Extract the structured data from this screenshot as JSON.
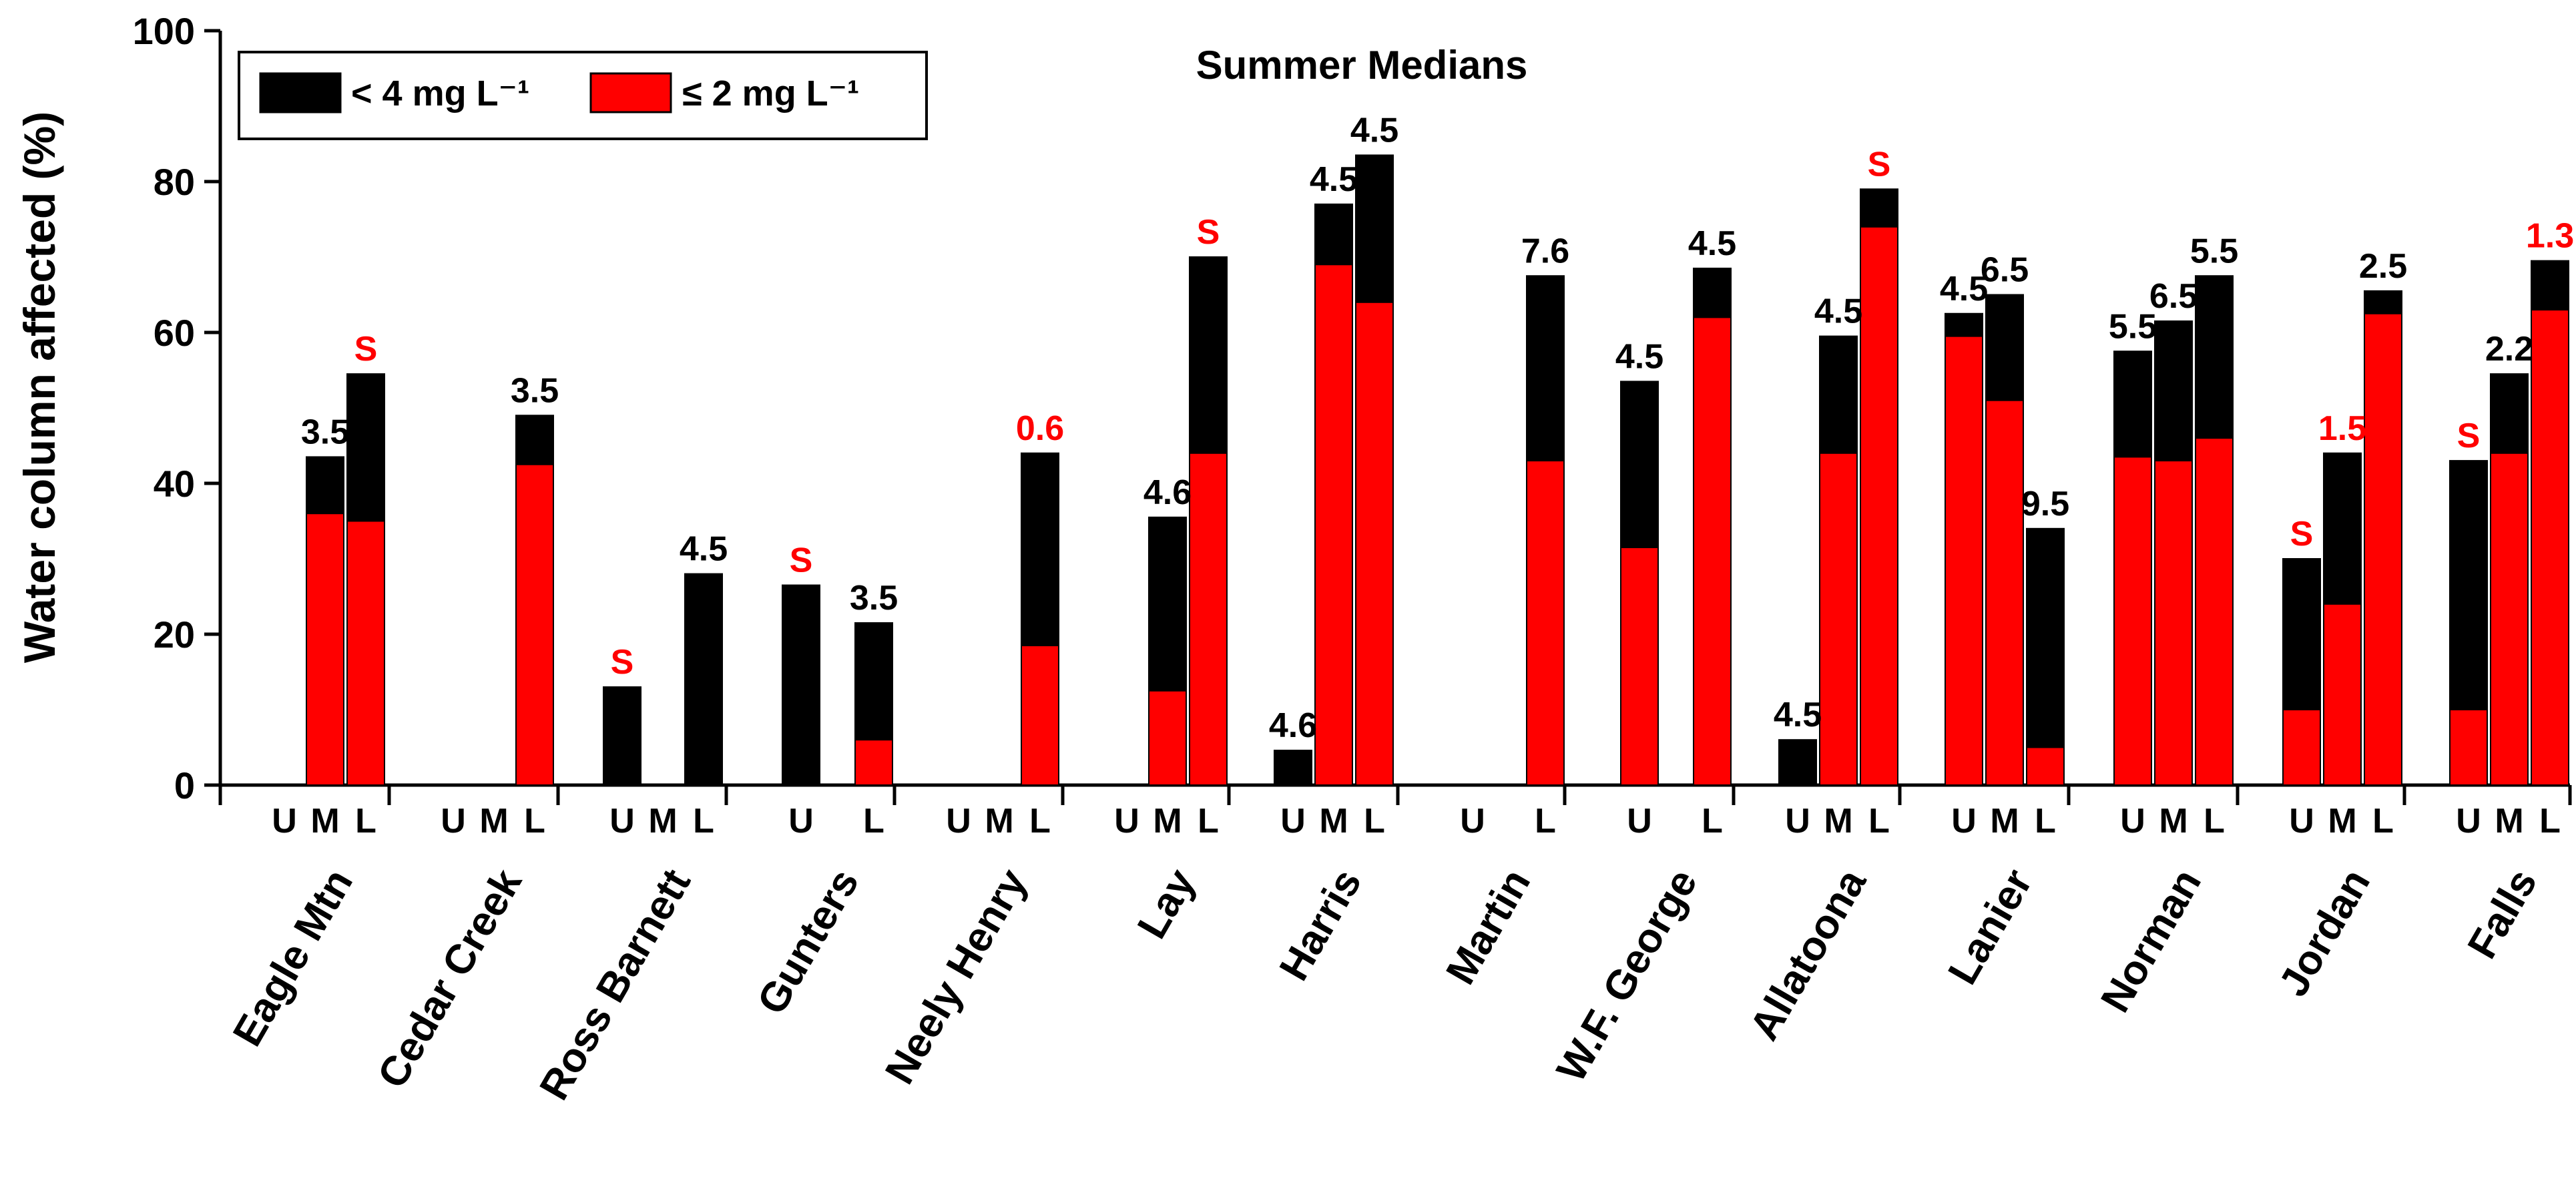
{
  "chart_data": {
    "type": "bar",
    "stacked": true,
    "title": "Summer Medians",
    "xlabel": "",
    "ylabel": "Water column affected (%)",
    "ylim": [
      0,
      100
    ],
    "yticks": [
      "0",
      "20",
      "40",
      "60",
      "80",
      "100"
    ],
    "legend_position": "top-left",
    "legend": [
      {
        "key": "lt4",
        "label": "< 4 mg L⁻¹",
        "color": "#000000"
      },
      {
        "key": "le2",
        "label": "≤ 2 mg L⁻¹",
        "color": "#ff0000"
      }
    ],
    "colors": {
      "lt4": "#000000",
      "le2": "#ff0000",
      "label_red": "#ff0000",
      "label_black": "#000000"
    },
    "groups": [
      {
        "name": "Eagle Mtn",
        "positions": [
          "U",
          "M",
          "L"
        ],
        "bars": [
          {
            "pos": "U",
            "lt4": 0,
            "le2": 0,
            "label": null
          },
          {
            "pos": "M",
            "lt4": 43.5,
            "le2": 36,
            "label": "3.5",
            "label_color": "black"
          },
          {
            "pos": "L",
            "lt4": 54.5,
            "le2": 35,
            "label": "S",
            "label_color": "red"
          }
        ]
      },
      {
        "name": "Cedar Creek",
        "positions": [
          "U",
          "M",
          "L"
        ],
        "bars": [
          {
            "pos": "U",
            "lt4": 0,
            "le2": 0,
            "label": null
          },
          {
            "pos": "M",
            "lt4": 0,
            "le2": 0,
            "label": null
          },
          {
            "pos": "L",
            "lt4": 49,
            "le2": 42.5,
            "label": "3.5",
            "label_color": "black"
          }
        ]
      },
      {
        "name": "Ross Barnett",
        "positions": [
          "U",
          "M",
          "L"
        ],
        "bars": [
          {
            "pos": "U",
            "lt4": 13,
            "le2": 0,
            "label": "S",
            "label_color": "red"
          },
          {
            "pos": "M",
            "lt4": 0,
            "le2": 0,
            "label": null
          },
          {
            "pos": "L",
            "lt4": 28,
            "le2": 0,
            "label": "4.5",
            "label_color": "black"
          }
        ]
      },
      {
        "name": "Gunters",
        "positions": [
          "U",
          "L"
        ],
        "bars": [
          {
            "pos": "U",
            "lt4": 26.5,
            "le2": 0,
            "label": "S",
            "label_color": "red"
          },
          {
            "pos": "L",
            "lt4": 21.5,
            "le2": 6,
            "label": "3.5",
            "label_color": "black"
          }
        ]
      },
      {
        "name": "Neely Henry",
        "positions": [
          "U",
          "M",
          "L"
        ],
        "bars": [
          {
            "pos": "U",
            "lt4": 0,
            "le2": 0,
            "label": null
          },
          {
            "pos": "M",
            "lt4": 0,
            "le2": 0,
            "label": null
          },
          {
            "pos": "L",
            "lt4": 44,
            "le2": 18.5,
            "label": "0.6",
            "label_color": "red"
          }
        ]
      },
      {
        "name": "Lay",
        "positions": [
          "U",
          "M",
          "L"
        ],
        "bars": [
          {
            "pos": "U",
            "lt4": 0,
            "le2": 0,
            "label": null
          },
          {
            "pos": "M",
            "lt4": 35.5,
            "le2": 12.5,
            "label": "4.6",
            "label_color": "black"
          },
          {
            "pos": "L",
            "lt4": 70,
            "le2": 44,
            "label": "S",
            "label_color": "red"
          }
        ]
      },
      {
        "name": "Harris",
        "positions": [
          "U",
          "M",
          "L"
        ],
        "bars": [
          {
            "pos": "U",
            "lt4": 4.6,
            "le2": 0,
            "label": "4.6",
            "label_color": "black"
          },
          {
            "pos": "M",
            "lt4": 77,
            "le2": 69,
            "label": "4.5",
            "label_color": "black"
          },
          {
            "pos": "L",
            "lt4": 83.5,
            "le2": 64,
            "label": "4.5",
            "label_color": "black"
          }
        ]
      },
      {
        "name": "Martin",
        "positions": [
          "U",
          "L"
        ],
        "bars": [
          {
            "pos": "U",
            "lt4": 0,
            "le2": 0,
            "label": null
          },
          {
            "pos": "L",
            "lt4": 67.5,
            "le2": 43,
            "label": "7.6",
            "label_color": "black"
          }
        ]
      },
      {
        "name": "W.F. George",
        "positions": [
          "U",
          "L"
        ],
        "bars": [
          {
            "pos": "U",
            "lt4": 53.5,
            "le2": 31.5,
            "label": "4.5",
            "label_color": "black"
          },
          {
            "pos": "L",
            "lt4": 68.5,
            "le2": 62,
            "label": "4.5",
            "label_color": "black"
          }
        ]
      },
      {
        "name": "Allatoona",
        "positions": [
          "U",
          "M",
          "L"
        ],
        "bars": [
          {
            "pos": "U",
            "lt4": 6,
            "le2": 0,
            "label": "4.5",
            "label_color": "black"
          },
          {
            "pos": "M",
            "lt4": 59.5,
            "le2": 44,
            "label": "4.5",
            "label_color": "black"
          },
          {
            "pos": "L",
            "lt4": 79,
            "le2": 74,
            "label": "S",
            "label_color": "red"
          }
        ]
      },
      {
        "name": "Lanier",
        "positions": [
          "U",
          "M",
          "L"
        ],
        "bars": [
          {
            "pos": "U",
            "lt4": 62.5,
            "le2": 59.5,
            "label": "4.5",
            "label_color": "black"
          },
          {
            "pos": "M",
            "lt4": 65,
            "le2": 51,
            "label": "6.5",
            "label_color": "black"
          },
          {
            "pos": "L",
            "lt4": 34,
            "le2": 5,
            "label": "9.5",
            "label_color": "black"
          }
        ]
      },
      {
        "name": "Norman",
        "positions": [
          "U",
          "M",
          "L"
        ],
        "bars": [
          {
            "pos": "U",
            "lt4": 57.5,
            "le2": 43.5,
            "label": "5.5",
            "label_color": "black"
          },
          {
            "pos": "M",
            "lt4": 61.5,
            "le2": 43,
            "label": "6.5",
            "label_color": "black"
          },
          {
            "pos": "L",
            "lt4": 67.5,
            "le2": 46,
            "label": "5.5",
            "label_color": "black"
          }
        ]
      },
      {
        "name": "Jordan",
        "positions": [
          "U",
          "M",
          "L"
        ],
        "bars": [
          {
            "pos": "U",
            "lt4": 30,
            "le2": 10,
            "label": "S",
            "label_color": "red"
          },
          {
            "pos": "M",
            "lt4": 44,
            "le2": 24,
            "label": "1.5",
            "label_color": "red"
          },
          {
            "pos": "L",
            "lt4": 65.5,
            "le2": 62.5,
            "label": "2.5",
            "label_color": "black"
          }
        ]
      },
      {
        "name": "Falls",
        "positions": [
          "U",
          "M",
          "L"
        ],
        "bars": [
          {
            "pos": "U",
            "lt4": 43,
            "le2": 10,
            "label": "S",
            "label_color": "red"
          },
          {
            "pos": "M",
            "lt4": 54.5,
            "le2": 44,
            "label": "2.2",
            "label_color": "black"
          },
          {
            "pos": "L",
            "lt4": 69.5,
            "le2": 63,
            "label": "1.3",
            "label_color": "red"
          }
        ]
      }
    ]
  }
}
